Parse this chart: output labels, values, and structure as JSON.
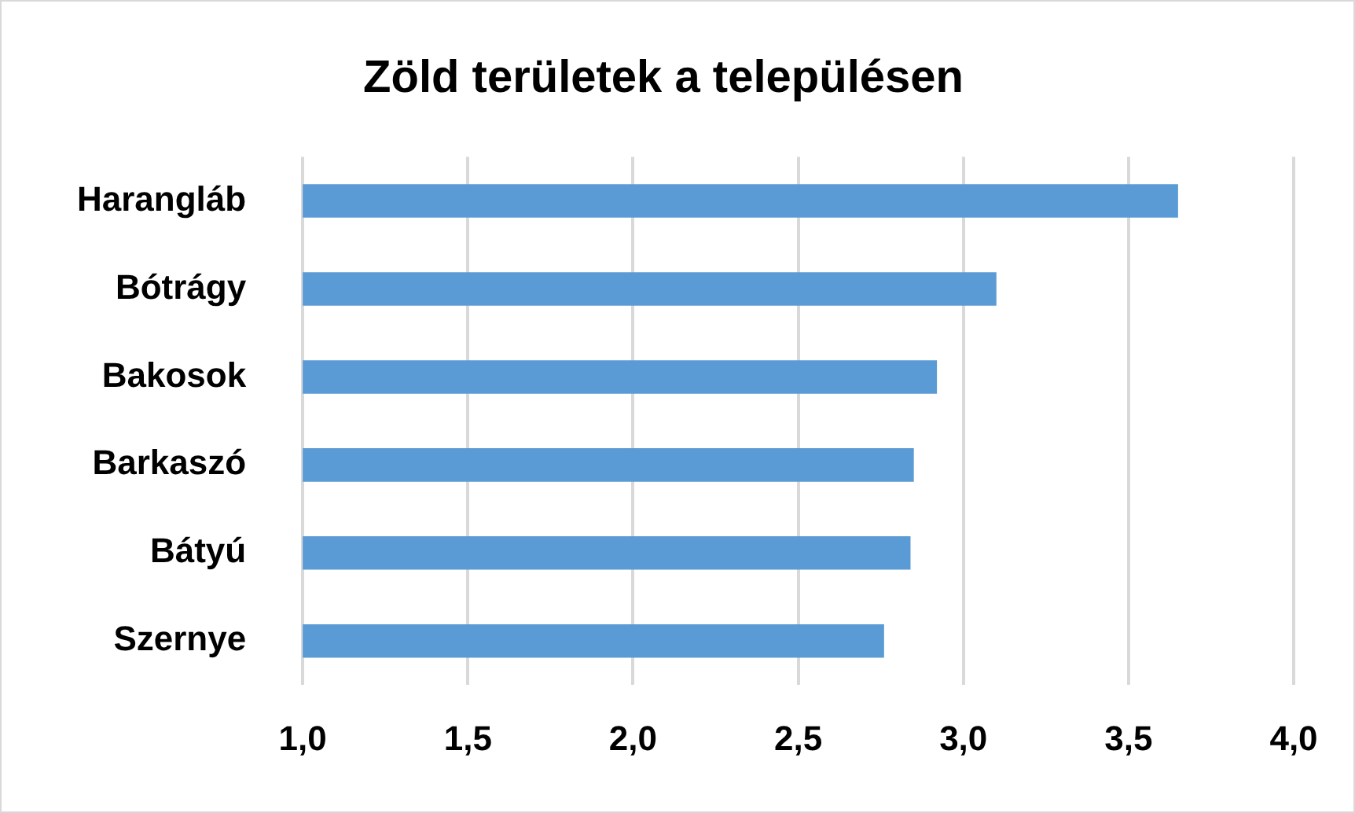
{
  "chart_data": {
    "type": "bar",
    "orientation": "horizontal",
    "title": "Zöld területek a településen",
    "categories": [
      "Harangláb",
      "Bótrágy",
      "Bakosok",
      "Barkaszó",
      "Bátyú",
      "Szernye"
    ],
    "values": [
      3.65,
      3.1,
      2.92,
      2.85,
      2.84,
      2.76
    ],
    "color": "#5b9bd5",
    "xlim": [
      1,
      4
    ],
    "xticks": [
      {
        "value": 1,
        "label": "1,0"
      },
      {
        "value": 1.5,
        "label": "1,5"
      },
      {
        "value": 2,
        "label": "2,0"
      },
      {
        "value": 2.5,
        "label": "2,5"
      },
      {
        "value": 3,
        "label": "3,0"
      },
      {
        "value": 3.5,
        "label": "3,5"
      },
      {
        "value": 4,
        "label": "4,0"
      }
    ],
    "grid": "x",
    "legend": false
  }
}
